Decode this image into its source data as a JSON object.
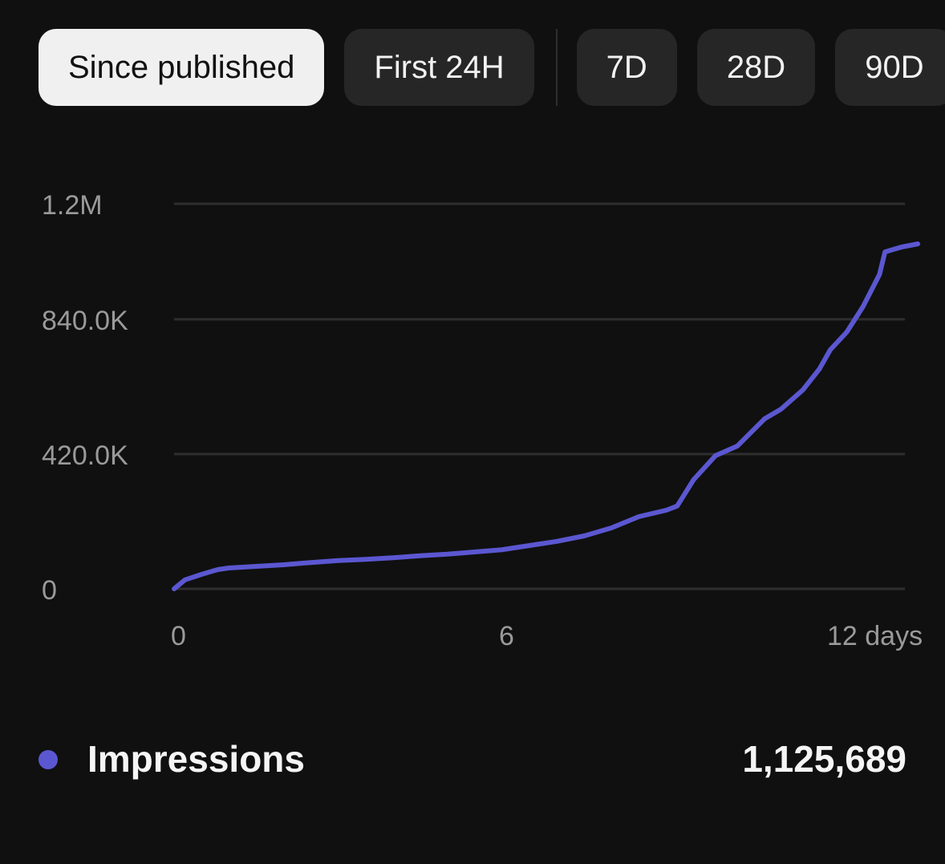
{
  "filters": [
    {
      "label": "Since published",
      "active": true
    },
    {
      "label": "First 24H",
      "active": false
    },
    {
      "label": "7D",
      "active": false
    },
    {
      "label": "28D",
      "active": false
    },
    {
      "label": "90D",
      "active": false
    }
  ],
  "colors": {
    "line": "#5b57d1",
    "grid": "#2e2e2e",
    "axis_text": "#9a9a9a"
  },
  "chart_data": {
    "type": "line",
    "x_ticks": [
      {
        "value": 0,
        "label": "0"
      },
      {
        "value": 6,
        "label": "6"
      },
      {
        "value": 12,
        "label": "12 days"
      }
    ],
    "y_ticks": [
      {
        "value": 0,
        "label": "0"
      },
      {
        "value": 420000,
        "label": "420.0K"
      },
      {
        "value": 840000,
        "label": "840.0K"
      },
      {
        "value": 1200000,
        "label": "1.2M"
      }
    ],
    "xlim": [
      0,
      13.6
    ],
    "ylim": [
      0,
      1200000
    ],
    "grid": true,
    "series": [
      {
        "name": "Impressions",
        "points": [
          [
            0,
            0
          ],
          [
            0.2,
            28000
          ],
          [
            0.5,
            45000
          ],
          [
            0.8,
            60000
          ],
          [
            1.0,
            65000
          ],
          [
            1.5,
            70000
          ],
          [
            2.0,
            75000
          ],
          [
            2.5,
            82000
          ],
          [
            3.0,
            88000
          ],
          [
            3.5,
            92000
          ],
          [
            4.0,
            97000
          ],
          [
            4.5,
            103000
          ],
          [
            5.0,
            108000
          ],
          [
            5.5,
            115000
          ],
          [
            6.0,
            122000
          ],
          [
            6.5,
            135000
          ],
          [
            7.0,
            148000
          ],
          [
            7.5,
            165000
          ],
          [
            8.0,
            190000
          ],
          [
            8.5,
            225000
          ],
          [
            9.0,
            245000
          ],
          [
            9.2,
            258000
          ],
          [
            9.5,
            340000
          ],
          [
            9.9,
            415000
          ],
          [
            10.3,
            445000
          ],
          [
            10.8,
            530000
          ],
          [
            11.1,
            560000
          ],
          [
            11.5,
            620000
          ],
          [
            11.8,
            685000
          ],
          [
            12.0,
            745000
          ],
          [
            12.3,
            800000
          ],
          [
            12.6,
            880000
          ],
          [
            12.9,
            980000
          ],
          [
            13.0,
            1050000
          ],
          [
            13.3,
            1065000
          ],
          [
            13.6,
            1075000
          ]
        ]
      }
    ]
  },
  "legend": {
    "label": "Impressions",
    "value": "1,125,689"
  }
}
